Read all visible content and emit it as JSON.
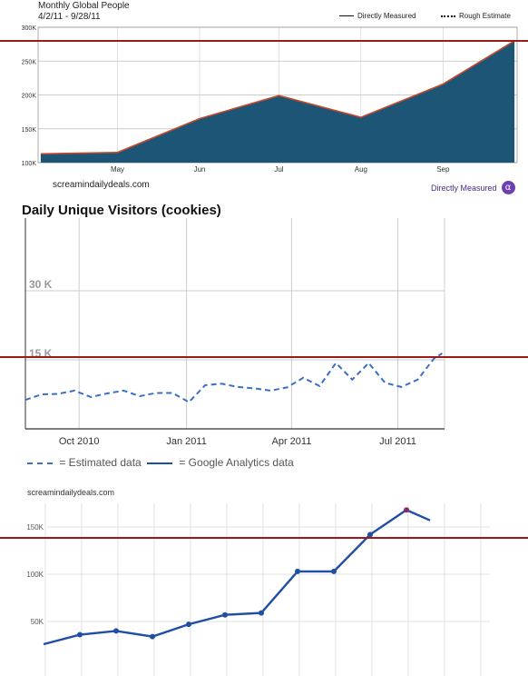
{
  "chart_data": [
    {
      "type": "area",
      "title": "Monthly Global People",
      "subtitle": "4/2/11 - 9/28/11",
      "x_tick_labels": [
        "May",
        "Jun",
        "Jul",
        "Aug",
        "Sep"
      ],
      "y_tick_labels": [
        "300K",
        "250K",
        "200K",
        "150K",
        "100K"
      ],
      "ylim": [
        100000,
        300000
      ],
      "legend": [
        "Directly Measured",
        "Rough Estimate"
      ],
      "legend_position": "top-right",
      "series": [
        {
          "name": "Directly Measured",
          "x": [
            "2011-04-02",
            "2011-05-01",
            "2011-06-01",
            "2011-07-01",
            "2011-08-01",
            "2011-09-01",
            "2011-09-28"
          ],
          "values": [
            113000,
            115000,
            165000,
            199000,
            167000,
            216000,
            280000
          ]
        }
      ],
      "source": "screamindailydeals.com",
      "badge_label": "Directly Measured",
      "badge_symbol": "α",
      "colors": {
        "fill": "#1d5577",
        "line": "#c24a2b"
      },
      "grid": true
    },
    {
      "type": "line",
      "title": "Daily Unique Visitors (cookies)",
      "x_tick_labels": [
        "Oct 2010",
        "Jan 2011",
        "Apr 2011",
        "Jul 2011"
      ],
      "y_tick_labels": [
        "30 K",
        "15 K"
      ],
      "ylim": [
        0,
        45000
      ],
      "legend": [
        "= Estimated data",
        "= Google Analytics data"
      ],
      "legend_position": "bottom",
      "series": [
        {
          "name": "Estimated data",
          "x": [
            "2010-08-16",
            "2010-08-30",
            "2010-09-13",
            "2010-09-27",
            "2010-10-11",
            "2010-10-25",
            "2010-11-08",
            "2010-11-22",
            "2010-12-06",
            "2010-12-20",
            "2011-01-03",
            "2011-01-17",
            "2011-01-31",
            "2011-02-14",
            "2011-02-28",
            "2011-03-14",
            "2011-03-28",
            "2011-04-11",
            "2011-04-25",
            "2011-05-09",
            "2011-05-23",
            "2011-06-06",
            "2011-06-20",
            "2011-07-04",
            "2011-07-18",
            "2011-08-01",
            "2011-08-08"
          ],
          "values": [
            6300,
            7500,
            7600,
            8300,
            6900,
            7700,
            8300,
            7100,
            7800,
            7800,
            5800,
            9500,
            9800,
            9100,
            8800,
            8300,
            9000,
            11100,
            9300,
            14300,
            10700,
            14300,
            10000,
            9100,
            10700,
            15300,
            16400
          ]
        }
      ],
      "colors": {
        "estimated": "#3a6fc4",
        "analytics": "#1a4fb0",
        "grid": "#cccccc",
        "axis": "#333333"
      },
      "grid": true
    },
    {
      "type": "line",
      "source": "screamindailydeals.com",
      "y_tick_labels": [
        "150K",
        "100K",
        "50K"
      ],
      "ylim": [
        25000,
        175000
      ],
      "series": [
        {
          "name": "",
          "x": [
            1,
            2,
            3,
            4,
            5,
            6,
            7,
            8,
            9,
            10,
            11,
            12
          ],
          "values": [
            26000,
            36000,
            40000,
            34000,
            47000,
            57000,
            59000,
            103000,
            103000,
            142000,
            168000,
            157000
          ]
        }
      ],
      "colors": {
        "line": "#1f4fa3",
        "highlight": "#8a2b6a",
        "grid": "#e0e0e0"
      },
      "grid": true
    }
  ],
  "reference_line_color": "#9b1b1b"
}
